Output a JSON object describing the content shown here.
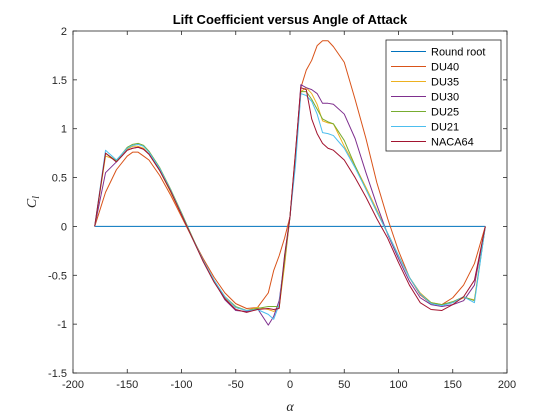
{
  "chart_data": {
    "type": "line",
    "title": "Lift Coefficient versus Angle of Attack",
    "xlabel": "α",
    "ylabel": "C",
    "ylabel_subscript": "l",
    "xlim": [
      -200,
      200
    ],
    "ylim": [
      -1.5,
      2
    ],
    "xticks": [
      -200,
      -150,
      -100,
      -50,
      0,
      50,
      100,
      150,
      200
    ],
    "yticks": [
      -1.5,
      -1,
      -0.5,
      0,
      0.5,
      1,
      1.5,
      2
    ],
    "xtick_labels": [
      "-200",
      "-150",
      "-100",
      "-50",
      "0",
      "50",
      "100",
      "150",
      "200"
    ],
    "ytick_labels": [
      "-1.5",
      "-1",
      "-0.5",
      "0",
      "0.5",
      "1",
      "1.5",
      "2"
    ],
    "grid": false,
    "legend_position": "top-right",
    "series": [
      {
        "name": "Round root",
        "color": "#0072BD",
        "x": [
          -180,
          180
        ],
        "y": [
          0,
          0
        ]
      },
      {
        "name": "DU40",
        "color": "#D95319",
        "x": [
          -180,
          -170,
          -160,
          -150,
          -145,
          -140,
          -135,
          -130,
          -120,
          -110,
          -100,
          -90,
          -80,
          -70,
          -60,
          -50,
          -40,
          -30,
          -20,
          -15,
          -10,
          -5,
          0,
          5,
          10,
          15,
          20,
          25,
          30,
          35,
          40,
          50,
          60,
          70,
          80,
          90,
          100,
          110,
          120,
          130,
          140,
          150,
          160,
          170,
          180
        ],
        "y": [
          0,
          0.35,
          0.58,
          0.72,
          0.76,
          0.76,
          0.72,
          0.68,
          0.52,
          0.32,
          0.1,
          -0.12,
          -0.33,
          -0.52,
          -0.68,
          -0.79,
          -0.84,
          -0.83,
          -0.68,
          -0.45,
          -0.3,
          -0.12,
          0.1,
          0.75,
          1.42,
          1.6,
          1.7,
          1.85,
          1.9,
          1.9,
          1.84,
          1.68,
          1.3,
          0.9,
          0.45,
          0.08,
          -0.25,
          -0.52,
          -0.7,
          -0.79,
          -0.8,
          -0.73,
          -0.6,
          -0.38,
          0
        ]
      },
      {
        "name": "DU35",
        "color": "#EDB120",
        "x": [
          -180,
          -170,
          -160,
          -150,
          -145,
          -140,
          -135,
          -130,
          -120,
          -110,
          -100,
          -90,
          -80,
          -70,
          -60,
          -50,
          -40,
          -30,
          -20,
          -15,
          -10,
          -5,
          0,
          5,
          10,
          15,
          20,
          25,
          30,
          35,
          40,
          50,
          60,
          70,
          80,
          90,
          100,
          110,
          120,
          130,
          140,
          150,
          160,
          170,
          180
        ],
        "y": [
          0,
          0.72,
          0.68,
          0.79,
          0.82,
          0.82,
          0.8,
          0.74,
          0.57,
          0.35,
          0.12,
          -0.12,
          -0.35,
          -0.55,
          -0.73,
          -0.83,
          -0.86,
          -0.83,
          -0.85,
          -0.87,
          -0.83,
          -0.4,
          0.1,
          0.72,
          1.38,
          1.42,
          1.36,
          1.25,
          1.08,
          1.06,
          1.05,
          0.82,
          0.62,
          0.4,
          0.17,
          -0.07,
          -0.3,
          -0.52,
          -0.68,
          -0.78,
          -0.8,
          -0.78,
          -0.73,
          -0.75,
          0
        ]
      },
      {
        "name": "DU30",
        "color": "#7E2F8E",
        "x": [
          -180,
          -170,
          -160,
          -150,
          -145,
          -140,
          -135,
          -130,
          -120,
          -110,
          -100,
          -90,
          -80,
          -70,
          -60,
          -50,
          -40,
          -30,
          -20,
          -15,
          -10,
          -5,
          0,
          5,
          10,
          15,
          20,
          25,
          30,
          35,
          40,
          50,
          60,
          70,
          80,
          90,
          100,
          110,
          120,
          130,
          140,
          150,
          160,
          170,
          180
        ],
        "y": [
          0,
          0.55,
          0.66,
          0.78,
          0.8,
          0.81,
          0.79,
          0.74,
          0.58,
          0.37,
          0.13,
          -0.11,
          -0.35,
          -0.56,
          -0.75,
          -0.86,
          -0.87,
          -0.84,
          -1.01,
          -0.92,
          -0.76,
          -0.35,
          0.1,
          0.72,
          1.45,
          1.42,
          1.4,
          1.36,
          1.26,
          1.26,
          1.25,
          1.15,
          0.9,
          0.55,
          0.22,
          -0.08,
          -0.33,
          -0.56,
          -0.73,
          -0.8,
          -0.82,
          -0.8,
          -0.76,
          -0.6,
          0
        ]
      },
      {
        "name": "DU25",
        "color": "#77AC30",
        "x": [
          -180,
          -170,
          -160,
          -150,
          -145,
          -140,
          -135,
          -130,
          -120,
          -110,
          -100,
          -90,
          -80,
          -70,
          -60,
          -50,
          -40,
          -30,
          -20,
          -15,
          -10,
          -5,
          0,
          5,
          10,
          15,
          20,
          25,
          30,
          35,
          40,
          50,
          60,
          70,
          80,
          90,
          100,
          110,
          120,
          130,
          140,
          150,
          160,
          170,
          180
        ],
        "y": [
          0,
          0.75,
          0.67,
          0.81,
          0.84,
          0.85,
          0.83,
          0.77,
          0.6,
          0.38,
          0.14,
          -0.11,
          -0.35,
          -0.56,
          -0.72,
          -0.82,
          -0.86,
          -0.84,
          -0.82,
          -0.82,
          -0.82,
          -0.35,
          0.1,
          0.7,
          1.38,
          1.38,
          1.3,
          1.2,
          1.1,
          1.07,
          1.05,
          0.88,
          0.62,
          0.38,
          0.15,
          -0.07,
          -0.3,
          -0.52,
          -0.69,
          -0.78,
          -0.8,
          -0.77,
          -0.72,
          -0.76,
          0
        ]
      },
      {
        "name": "DU21",
        "color": "#4DBEEE",
        "x": [
          -180,
          -170,
          -160,
          -150,
          -145,
          -140,
          -135,
          -130,
          -120,
          -110,
          -100,
          -90,
          -80,
          -70,
          -60,
          -50,
          -40,
          -30,
          -20,
          -15,
          -10,
          -5,
          0,
          5,
          10,
          15,
          20,
          25,
          30,
          35,
          40,
          50,
          60,
          70,
          80,
          90,
          100,
          110,
          120,
          130,
          140,
          150,
          160,
          170,
          180
        ],
        "y": [
          0,
          0.78,
          0.68,
          0.8,
          0.83,
          0.84,
          0.82,
          0.76,
          0.59,
          0.37,
          0.13,
          -0.12,
          -0.35,
          -0.55,
          -0.72,
          -0.83,
          -0.86,
          -0.85,
          -0.9,
          -0.95,
          -0.8,
          -0.3,
          0.1,
          0.62,
          1.36,
          1.34,
          1.28,
          1.15,
          0.96,
          0.95,
          0.93,
          0.8,
          0.6,
          0.38,
          0.15,
          -0.07,
          -0.3,
          -0.52,
          -0.69,
          -0.79,
          -0.81,
          -0.78,
          -0.72,
          -0.78,
          0
        ]
      },
      {
        "name": "NACA64",
        "color": "#A2142F",
        "x": [
          -180,
          -170,
          -160,
          -150,
          -145,
          -140,
          -135,
          -130,
          -120,
          -110,
          -100,
          -90,
          -80,
          -70,
          -60,
          -50,
          -40,
          -30,
          -20,
          -15,
          -10,
          -5,
          0,
          5,
          10,
          15,
          20,
          25,
          30,
          35,
          40,
          50,
          60,
          70,
          80,
          90,
          100,
          110,
          120,
          130,
          140,
          150,
          160,
          170,
          180
        ],
        "y": [
          0,
          0.75,
          0.66,
          0.78,
          0.8,
          0.81,
          0.79,
          0.74,
          0.57,
          0.36,
          0.12,
          -0.12,
          -0.36,
          -0.57,
          -0.74,
          -0.85,
          -0.88,
          -0.85,
          -0.84,
          -0.85,
          -0.84,
          -0.3,
          0.1,
          0.75,
          1.42,
          1.4,
          1.1,
          0.95,
          0.85,
          0.8,
          0.78,
          0.68,
          0.5,
          0.3,
          0.08,
          -0.12,
          -0.37,
          -0.6,
          -0.78,
          -0.85,
          -0.86,
          -0.8,
          -0.72,
          -0.55,
          0
        ]
      }
    ]
  }
}
